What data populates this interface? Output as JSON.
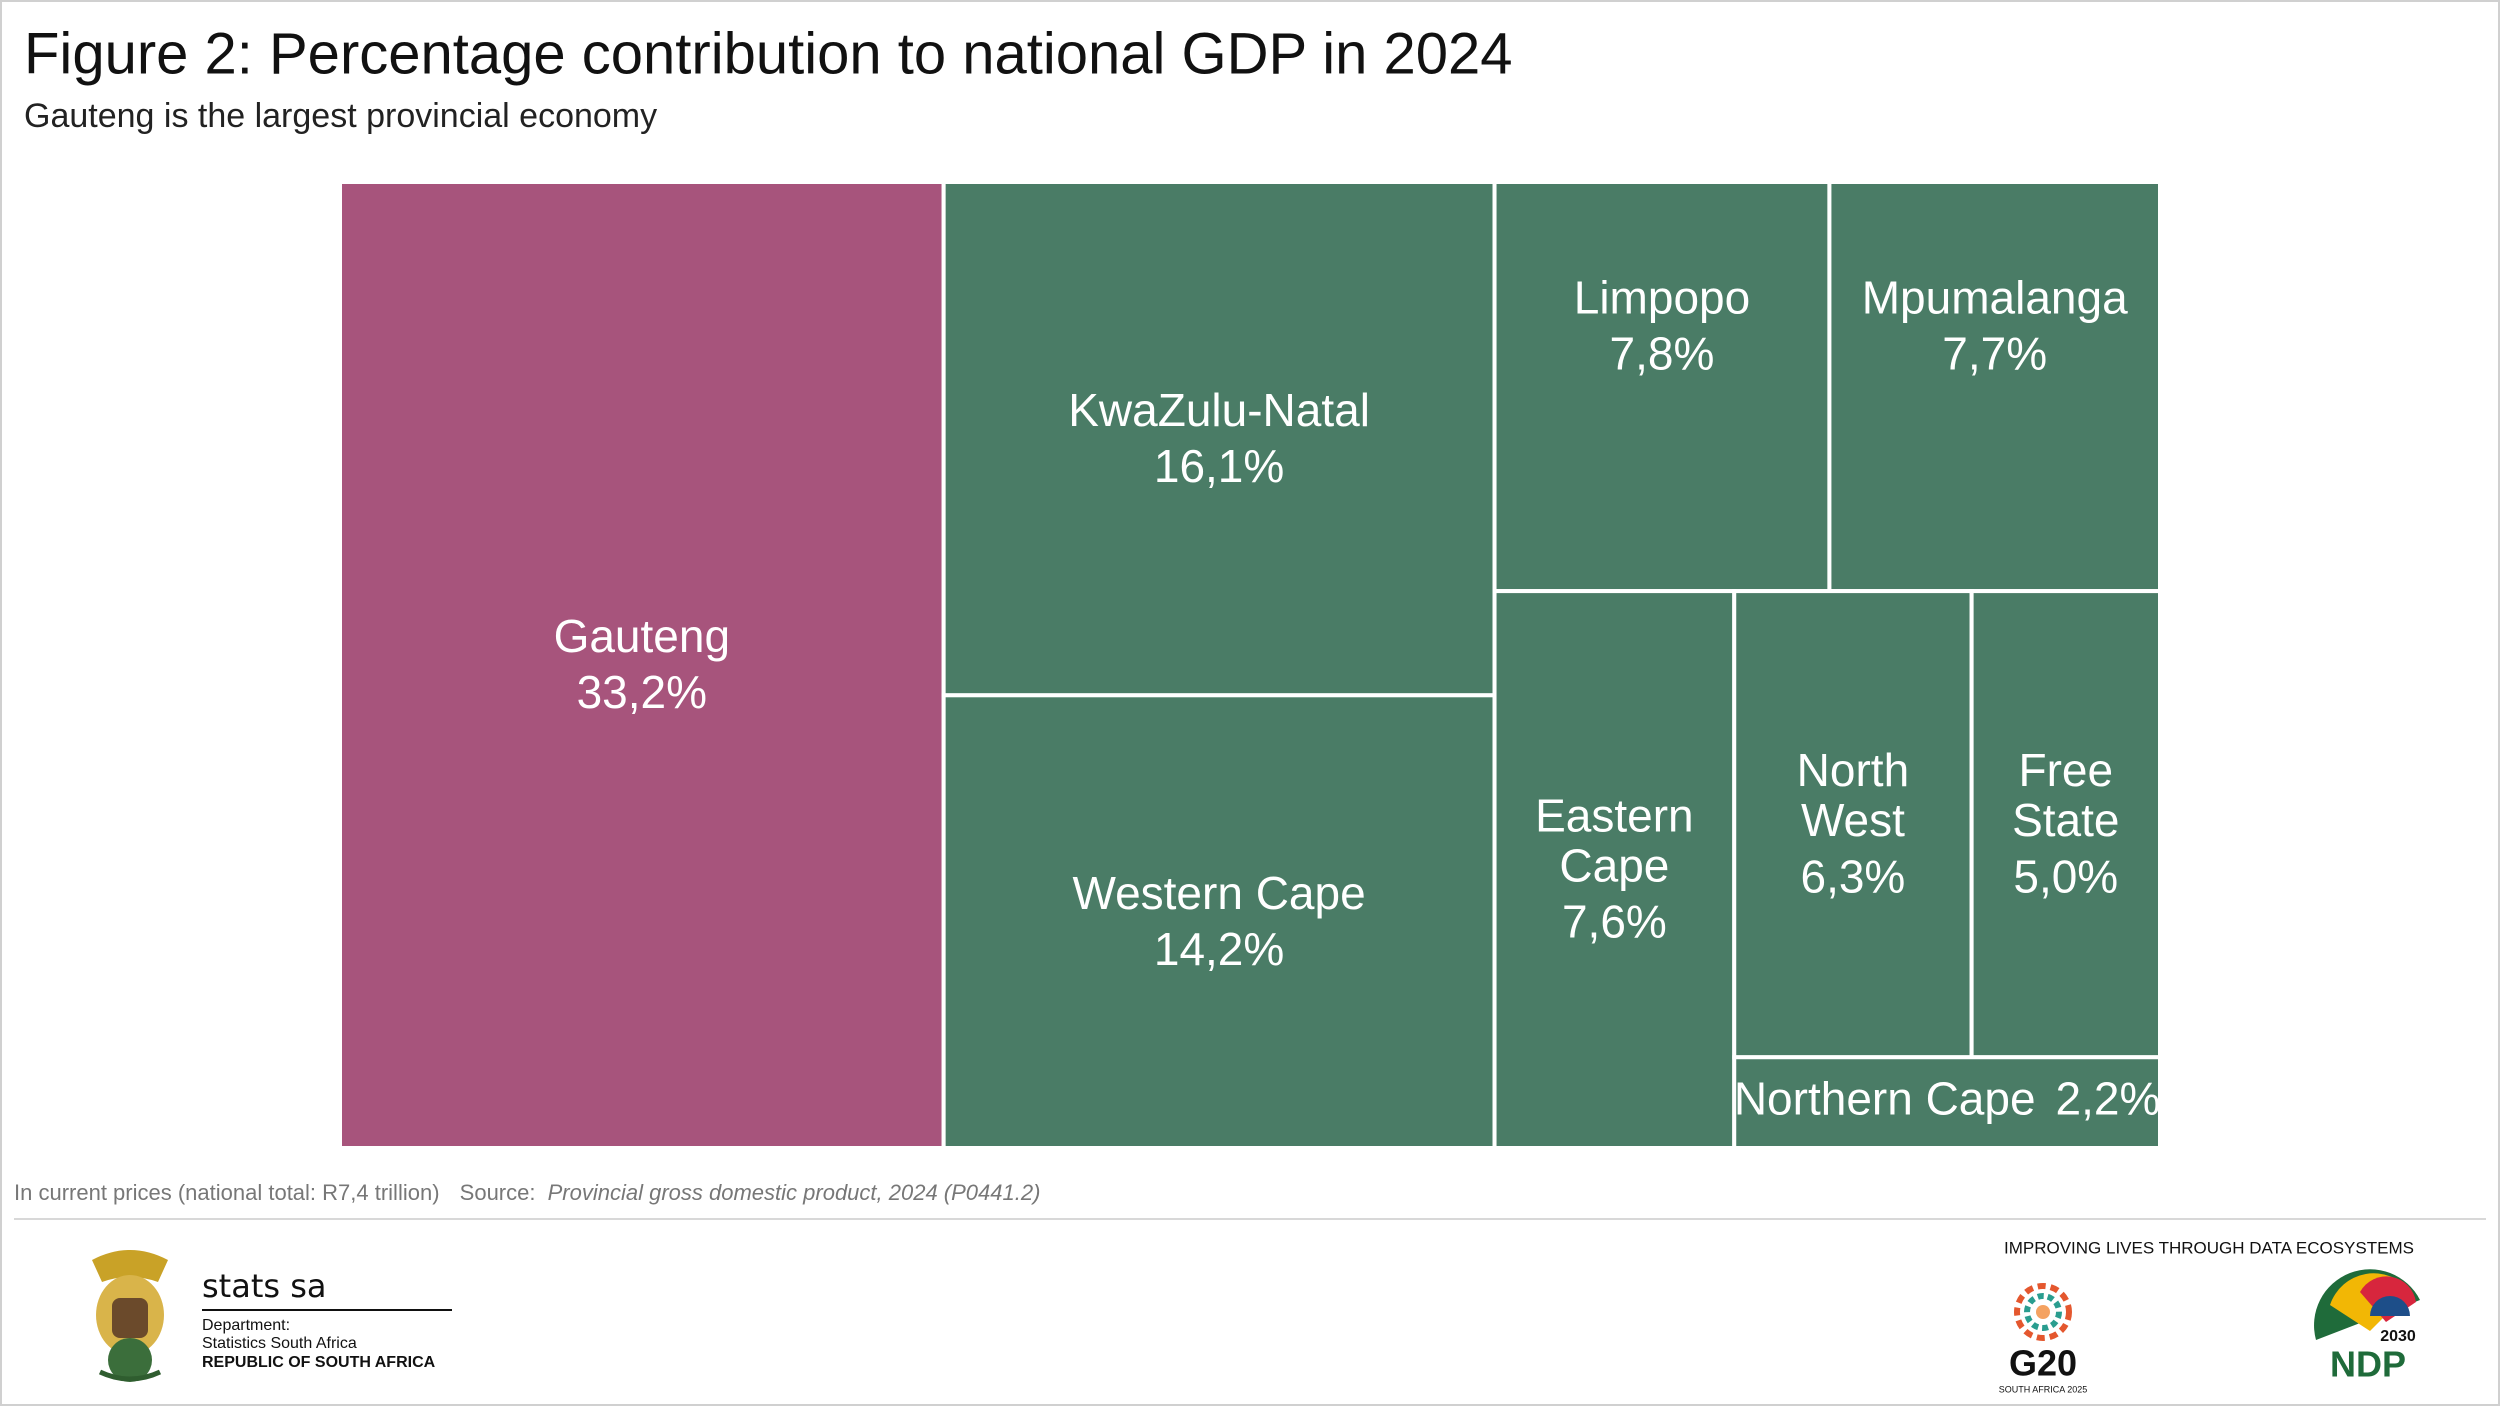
{
  "chart_data": {
    "type": "treemap",
    "title": "Figure 2: Percentage contribution to national GDP in 2024",
    "subtitle": "Gauteng is the largest provincial economy",
    "categories": [
      "Gauteng",
      "KwaZulu-Natal",
      "Western Cape",
      "Limpopo",
      "Mpumalanga",
      "Eastern Cape",
      "North West",
      "Free State",
      "Northern Cape"
    ],
    "values": [
      33.2,
      16.1,
      14.2,
      7.8,
      7.7,
      7.6,
      6.3,
      5.0,
      2.2
    ],
    "value_labels": [
      "33,2%",
      "16,1%",
      "14,2%",
      "7,8%",
      "7,7%",
      "7,6%",
      "6,3%",
      "5,0%",
      "2,2%"
    ],
    "colors": [
      "#a7547c",
      "#4a7c66",
      "#4a7c66",
      "#4a7c66",
      "#4a7c66",
      "#4a7c66",
      "#4a7c66",
      "#4a7c66",
      "#4a7c66"
    ],
    "note": "In current prices (national total: R7,4 trillion)",
    "source_label": "Source:",
    "source": "Provincial gross domestic product, 2024 (P0441.2)"
  },
  "footer": {
    "brand": "stats sa",
    "department": "Department:",
    "org": "Statistics South Africa",
    "country": "REPUBLIC OF SOUTH AFRICA",
    "slogan": "IMPROVING LIVES THROUGH DATA ECOSYSTEMS",
    "g20": "G20",
    "g20_sub": "SOUTH AFRICA 2025",
    "ndp_year": "2030",
    "ndp": "NDP"
  }
}
